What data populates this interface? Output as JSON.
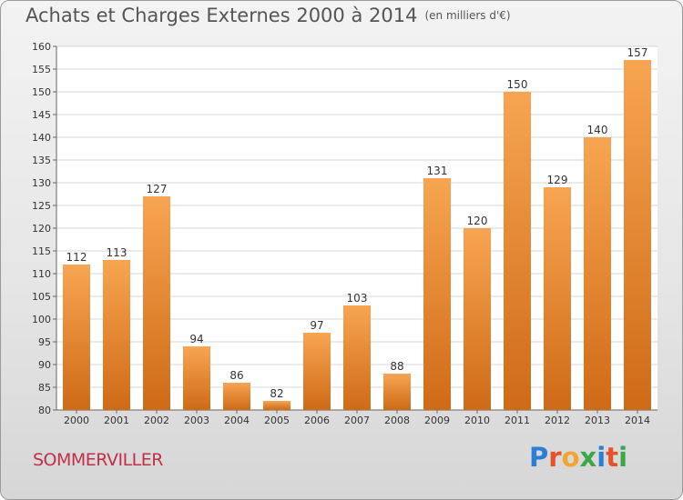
{
  "title": "Achats et Charges Externes 2000 à 2014",
  "unit": "(en milliers d'€)",
  "town": "SOMMERVILLER",
  "logo": {
    "letters": [
      "P",
      "r",
      "o",
      "x",
      "i",
      "t",
      "i"
    ],
    "colors": [
      "#2a7fd4",
      "#e8522a",
      "#f2a531",
      "#3aa84a",
      "#2a7fd4",
      "#e8522a",
      "#3aa84a"
    ]
  },
  "colors": {
    "bar_top": "#f7a552",
    "bar_bottom": "#cf6a16",
    "town": "#c0304a",
    "text": "#555555"
  },
  "chart_data": {
    "type": "bar",
    "categories": [
      "2000",
      "2001",
      "2002",
      "2003",
      "2004",
      "2005",
      "2006",
      "2007",
      "2008",
      "2009",
      "2010",
      "2011",
      "2012",
      "2013",
      "2014"
    ],
    "values": [
      112,
      113,
      127,
      94,
      86,
      82,
      97,
      103,
      88,
      131,
      120,
      150,
      129,
      140,
      157
    ],
    "ylim": [
      80,
      160
    ],
    "yticks": [
      80,
      85,
      90,
      95,
      100,
      105,
      110,
      115,
      120,
      125,
      130,
      135,
      140,
      145,
      150,
      155,
      160
    ],
    "grid": true
  }
}
